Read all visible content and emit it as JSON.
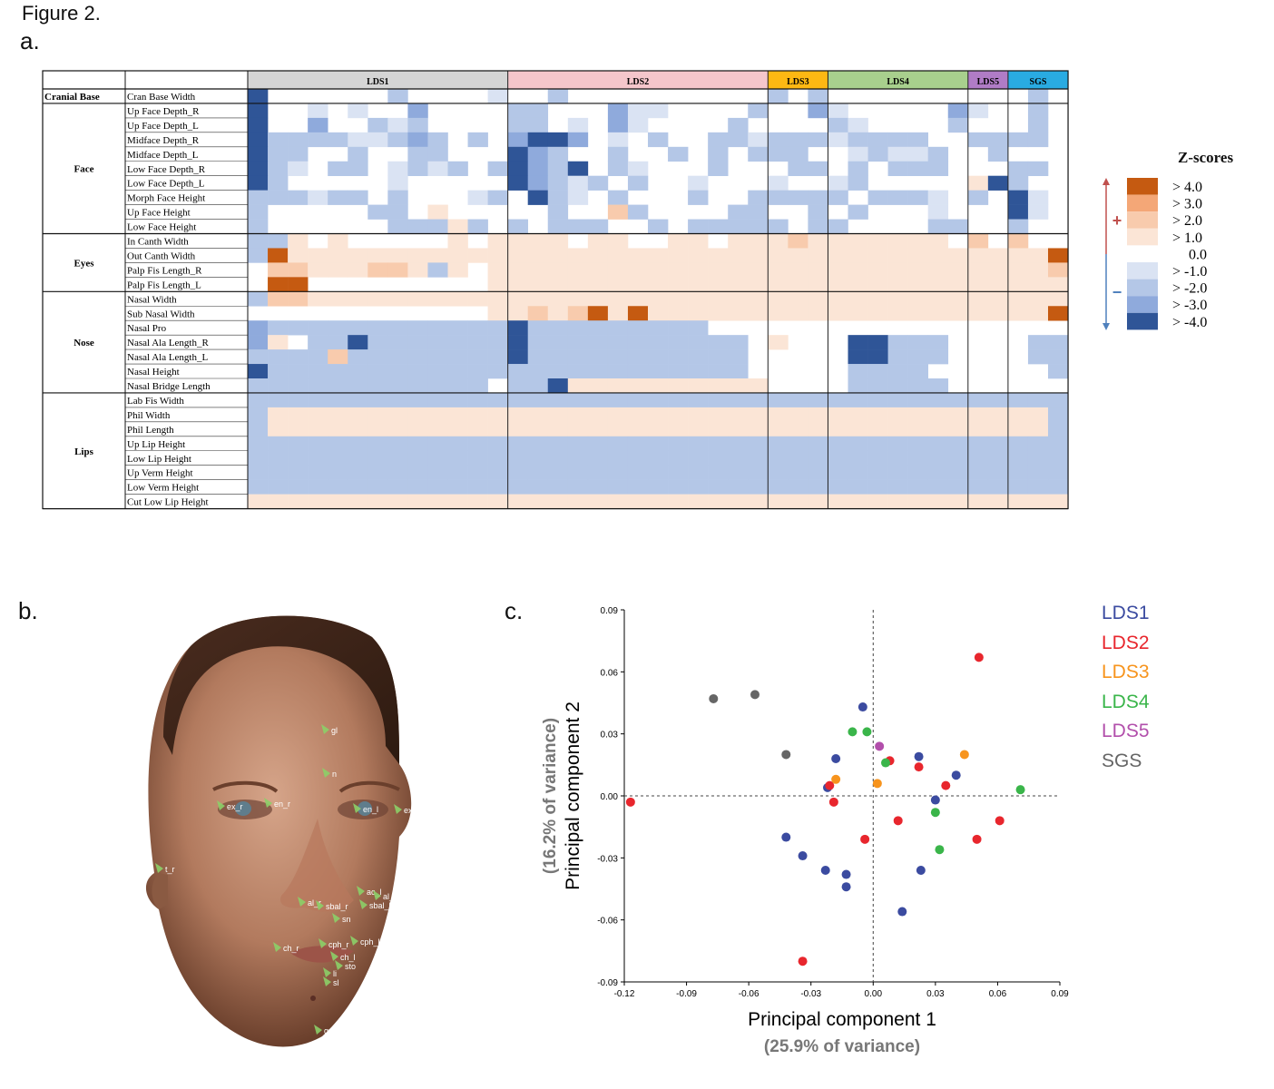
{
  "figure_title": "Figure 2.",
  "panels": {
    "a": "a.",
    "b": "b.",
    "c": "c."
  },
  "heatmap": {
    "groups": [
      {
        "label": "LDS1",
        "color": "#d5d5d5",
        "columns": 13
      },
      {
        "label": "LDS2",
        "color": "#f5c6cb",
        "columns": 13
      },
      {
        "label": "LDS3",
        "color": "#fdb813",
        "columns": 3
      },
      {
        "label": "LDS4",
        "color": "#a8d08d",
        "columns": 7
      },
      {
        "label": "LDS5",
        "color": "#b07cc6",
        "columns": 2
      },
      {
        "label": "SGS",
        "color": "#29abe2",
        "columns": 3
      }
    ],
    "sections": [
      {
        "label": "Cranial Base",
        "rows": [
          "Cran Base Width"
        ]
      },
      {
        "label": "Face",
        "rows": [
          "Up Face Depth_R",
          "Up Face Depth_L",
          "Midface Depth_R",
          "Midface Depth_L",
          "Low Face Depth_R",
          "Low Face Depth_L",
          "Morph Face Height",
          "Up Face Height",
          "Low Face Height"
        ]
      },
      {
        "label": "Eyes",
        "rows": [
          "In Canth Width",
          "Out Canth Width",
          "Palp Fis Length_R",
          "Palp Fis Length_L"
        ]
      },
      {
        "label": "Nose",
        "rows": [
          "Nasal Width",
          "Sub Nasal Width",
          "Nasal Pro",
          "Nasal Ala Length_R",
          "Nasal Ala Length_L",
          "Nasal Height",
          "Nasal Bridge Length"
        ]
      },
      {
        "label": "Lips",
        "rows": [
          "Lab Fis Width",
          "Phil Width",
          "Phil Length",
          "Up Lip Height",
          "Low Lip Height",
          "Up Verm Height",
          "Low Verm Height",
          "Cut Low Lip Height"
        ]
      }
    ],
    "rows_z": [
      "4000000L0000100L0000000000L0L0000000000L",
      "4001010020000LL0002110000L0021000002100L",
      "400200L1L0000LL010210000L0000L10000L000L",
      "4LLLL11L3L0L02443010L00LL1LLL1LLLL00LLLL",
      "4LL00L00LL00043L00L00L0L0LLL001L11L00L00",
      "4L10LL01L1L0L43L40L1000L000LL0L0LLL000LL",
      "4L0000010000043L1L0L0010001001L00000a4L0",
      "LLL1LL0L0001L04L10L000L00LLLLL0LLL10L041",
      "L00000LL0a00000L00bL0000LL00L0L0001000410",
      "L000000LLLaL0L0LLL00L0LLLLL0LL0000LL00L00",
      "LLa0a00000a0aaaa0aa00aa0aaabaaaaaaa0b0b0",
      "Lcaaaaaaaaaaaaaaaaaaaaaaaaaaaaaaaaaaaaaaca",
      "0bbaaabbaLa0aaaaaaaaaaaaaaaaaaaaaaaaaaaab",
      "0cc000000000aaaaaaaaaaaaaaaaaaaaaaaaaaaaa",
      "Lbbaaaaaaaaaaaaaaaaaaaaaaaaaaaaaaaaaaaaaa",
      "000000000000aababcacaaaaaaaaaaaaaaaaaaaac",
      "3LLLLLLLLLLLL4LLLLLLLLL000000000000000000",
      "3a0LL4LLLLLLL4LLLLLLLLLLL0a00044LLL0000LL",
      "LLLLbLLLLLLLL4LLLLLLLLLLL0000044LLL0000LL",
      "4LLLLLLLLLLLLLLLLLLLLLLLL00000LLLL000000L",
      "LLLLLLLLLLLL0LL4aaaaaaaaaa0000LLLLL000000",
      "LLLLLLLLLLLLLLLLLLLLLLLLLLLLLLLLLLLLLLLLL",
      "LaaaaaaaaaaaaaaaaaaaaaaaaaaaaaaaaaaaaaaaL",
      "LaaaaaaaaaaaaaaaaaaaaaaaaaaaaaaaaaaaaaaaL",
      "LLLLLLLLLLLLLLLLLLLLLLLLLLLLLLLLLLLLLLLLL",
      "LLLLLLLLLLLLLLLLLLLLLLLLLLLLLLLLLLLLLLLLL",
      "LLLLLLLLLLLLLLLLLLLLLLLLLLLLLLLLLLLLLLLLL",
      "LLLLLLLLLLLLLLLLLLLLLLLLLLLLLLLLLLLLLLLLL",
      "aaaaaaaaaaaaaaaaaaaaaaaaaaaaaaaaaaaaaaaaa"
    ],
    "color_scale": {
      "title": "Z-scores",
      "levels": [
        {
          "label": "> 4.0",
          "color": "#c55a11"
        },
        {
          "label": "> 3.0",
          "color": "#f4a777"
        },
        {
          "label": "> 2.0",
          "color": "#f8cbad"
        },
        {
          "label": "> 1.0",
          "color": "#fbe5d6"
        },
        {
          "label": "0.0",
          "color": "#ffffff"
        },
        {
          "label": "> -1.0",
          "color": "#dae3f3"
        },
        {
          "label": "> -2.0",
          "color": "#b4c7e7"
        },
        {
          "label": "> -3.0",
          "color": "#8faadc"
        },
        {
          "label": "> -4.0",
          "color": "#2f5597"
        }
      ],
      "plus_sign": "+",
      "minus_sign": "−"
    }
  },
  "face_landmarks": [
    "gl",
    "n",
    "ex_r",
    "en_r",
    "en_l",
    "ex_l",
    "t_r",
    "al_r",
    "ac_l",
    "al_l",
    "sbal_r",
    "sbal_l",
    "sn",
    "cph_r",
    "cph_l",
    "ch_r",
    "ch_l",
    "sto",
    "li",
    "sl",
    "gn"
  ],
  "pca_legend": [
    {
      "label": "LDS1",
      "color": "#3b4ba0"
    },
    {
      "label": "LDS2",
      "color": "#e8262d"
    },
    {
      "label": "LDS3",
      "color": "#f7941d"
    },
    {
      "label": "LDS4",
      "color": "#3ab54a"
    },
    {
      "label": "LDS5",
      "color": "#b24fab"
    },
    {
      "label": "SGS",
      "color": "#666666"
    }
  ],
  "chart_data": {
    "type": "scatter",
    "xlabel": "Principal component 1",
    "xlabel_sub": "(25.9% of variance)",
    "ylabel": "Principal component 2",
    "ylabel_sub": "(16.2% of variance)",
    "xlim": [
      -0.12,
      0.09
    ],
    "ylim": [
      -0.09,
      0.09
    ],
    "xticks": [
      "-0.12",
      "-0.09",
      "-0.06",
      "-0.03",
      "0.00",
      "0.03",
      "0.06",
      "0.09"
    ],
    "yticks": [
      "-0.09",
      "-0.06",
      "-0.03",
      "0.00",
      "0.03",
      "0.06",
      "0.09"
    ],
    "series": [
      {
        "name": "LDS1",
        "points": [
          [
            -0.005,
            0.043
          ],
          [
            -0.018,
            0.018
          ],
          [
            0.022,
            0.019
          ],
          [
            0.04,
            0.01
          ],
          [
            -0.022,
            0.004
          ],
          [
            0.03,
            -0.002
          ],
          [
            -0.042,
            -0.02
          ],
          [
            -0.034,
            -0.029
          ],
          [
            -0.023,
            -0.036
          ],
          [
            -0.013,
            -0.038
          ],
          [
            -0.013,
            -0.044
          ],
          [
            0.023,
            -0.036
          ],
          [
            0.014,
            -0.056
          ]
        ]
      },
      {
        "name": "LDS2",
        "points": [
          [
            0.051,
            0.067
          ],
          [
            0.008,
            0.017
          ],
          [
            0.022,
            0.014
          ],
          [
            0.035,
            0.005
          ],
          [
            -0.021,
            0.005
          ],
          [
            -0.019,
            -0.003
          ],
          [
            -0.117,
            -0.003
          ],
          [
            0.012,
            -0.012
          ],
          [
            0.061,
            -0.012
          ],
          [
            -0.004,
            -0.021
          ],
          [
            0.05,
            -0.021
          ],
          [
            -0.034,
            -0.08
          ]
        ]
      },
      {
        "name": "LDS3",
        "points": [
          [
            -0.018,
            0.008
          ],
          [
            0.002,
            0.006
          ],
          [
            0.044,
            0.02
          ]
        ]
      },
      {
        "name": "LDS4",
        "points": [
          [
            -0.01,
            0.031
          ],
          [
            -0.003,
            0.031
          ],
          [
            0.006,
            0.016
          ],
          [
            0.071,
            0.003
          ],
          [
            0.03,
            -0.008
          ],
          [
            0.032,
            -0.026
          ]
        ]
      },
      {
        "name": "LDS5",
        "points": [
          [
            0.003,
            0.024
          ]
        ]
      },
      {
        "name": "SGS",
        "points": [
          [
            -0.077,
            0.047
          ],
          [
            -0.057,
            0.049
          ],
          [
            -0.042,
            0.02
          ]
        ]
      }
    ]
  }
}
